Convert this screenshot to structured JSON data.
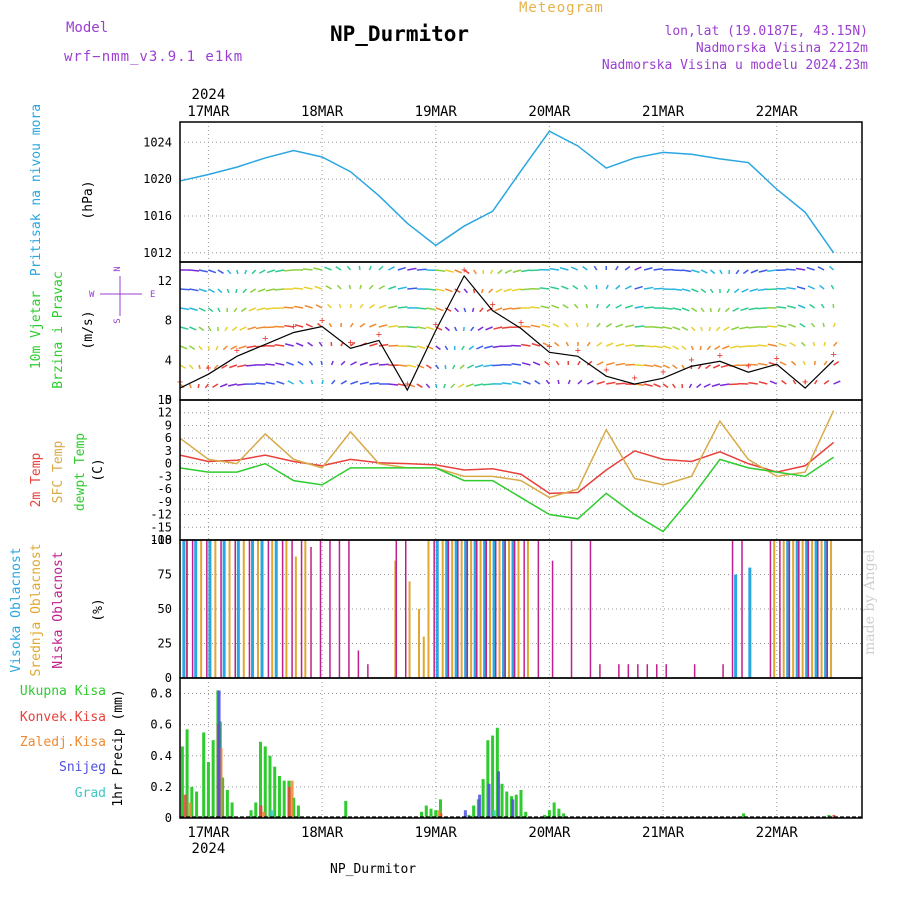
{
  "header": {
    "model_label": "Model",
    "model_name": "wrf−nmm_v3.9.1  e1km",
    "meteogram": "Meteogram",
    "title": "NP_Durmitor",
    "coords": "lon,lat (19.0187E, 43.15N)",
    "elev": "Nadmorska Visina 2212m",
    "elev_model": "Nadmorska Visina u modelu 2024.23m"
  },
  "footer": "NP_Durmitor",
  "watermark": "made by Angel",
  "colors": {
    "pressure": "#2aa6e0",
    "t2m": "#e8403a",
    "sfc": "#d8aa48",
    "dewpt": "#2ecc2e",
    "high_cloud": "#2aa6e0",
    "mid_cloud": "#e0a830",
    "low_cloud": "#c0208e",
    "total_precip": "#2ecc2e",
    "conv_precip": "#e8403a",
    "frz_precip": "#f08a30",
    "snow": "#4f4fe0",
    "graupel": "#40c8c8"
  },
  "chart_data": [
    {
      "type": "line",
      "panel": "pressure",
      "ylabel_1": "Pritisak na nivou mora",
      "ylabel_2": "(hPa)",
      "yticks": [
        1012,
        1016,
        1020,
        1024
      ],
      "ylim": [
        1011,
        1026.2
      ],
      "grid": true,
      "x_time_hours": [
        0,
        6,
        12,
        18,
        24,
        30,
        36,
        42,
        48,
        54,
        60,
        66,
        72,
        78,
        84,
        90,
        96,
        102,
        108,
        114,
        120,
        126,
        132,
        138
      ],
      "values": [
        1019.8,
        1020.5,
        1021.3,
        1022.3,
        1023.1,
        1022.4,
        1020.8,
        1018.2,
        1015.2,
        1012.8,
        1014.9,
        1016.5,
        1020.9,
        1025.2,
        1023.6,
        1021.2,
        1022.3,
        1022.9,
        1022.7,
        1022.2,
        1021.8,
        1018.9,
        1016.4,
        1012.0
      ]
    },
    {
      "type": "wind",
      "panel": "wind",
      "ylabel_1": "10m Vjetar",
      "ylabel_2": "Brzina i Pravac",
      "ylabel_3": "(m/s)",
      "compass": {
        "w": "W",
        "e": "E",
        "n": "N",
        "s": "S"
      },
      "yticks": [
        0,
        4,
        8,
        12
      ],
      "ylim": [
        0,
        13.9
      ],
      "x_time_hours": [
        0,
        6,
        12,
        18,
        24,
        30,
        36,
        42,
        48,
        54,
        60,
        66,
        72,
        78,
        84,
        90,
        96,
        102,
        108,
        114,
        120,
        126,
        132,
        138
      ],
      "values": [
        1.2,
        2.6,
        4.4,
        5.6,
        6.8,
        7.4,
        5.2,
        6.0,
        1.0,
        7.0,
        12.5,
        9.0,
        7.2,
        4.8,
        4.4,
        2.4,
        1.6,
        2.2,
        3.4,
        3.9,
        2.8,
        3.6,
        1.2,
        4.0
      ]
    },
    {
      "type": "line",
      "panel": "temperature",
      "ylabel_1": "2m Temp",
      "ylabel_2": "SFC Temp",
      "ylabel_3": "dewpt Temp",
      "ylabel_4": "(C)",
      "yticks": [
        15,
        12,
        9,
        6,
        3,
        0,
        -3,
        -6,
        -9,
        -12,
        -15,
        -18
      ],
      "ylim": [
        -18,
        15
      ],
      "grid": true,
      "x_time_hours": [
        0,
        6,
        12,
        18,
        24,
        30,
        36,
        42,
        48,
        54,
        60,
        66,
        72,
        78,
        84,
        90,
        96,
        102,
        108,
        114,
        120,
        126,
        132,
        138
      ],
      "series": [
        {
          "name": "2m Temp",
          "values": [
            2,
            0.5,
            0.8,
            2,
            0.5,
            -0.5,
            1,
            0.2,
            0,
            -0.3,
            -1.5,
            -1.2,
            -2.5,
            -7,
            -6.8,
            -1.5,
            3,
            1,
            0.5,
            2.8,
            0,
            -2,
            -0.5,
            5
          ]
        },
        {
          "name": "SFC Temp",
          "values": [
            6,
            1,
            0,
            7,
            1,
            -1,
            7.5,
            0,
            -1,
            -1,
            -3,
            -3,
            -4,
            -8,
            -6,
            8,
            -3.5,
            -5,
            -3,
            10,
            1,
            -3,
            -2,
            12.5
          ]
        },
        {
          "name": "dewpt Temp",
          "values": [
            -1,
            -2,
            -2,
            0,
            -4,
            -5,
            -1,
            -1,
            -1,
            -1,
            -4,
            -4,
            -8,
            -12,
            -13,
            -7,
            -12,
            -16,
            -8,
            1,
            -1,
            -2,
            -3,
            1.5
          ]
        }
      ]
    },
    {
      "type": "bar",
      "panel": "clouds",
      "ylabel_1": "Visoka Oblacnost",
      "ylabel_2": "Srednja Oblacnost",
      "ylabel_3": "Niska Oblacnost",
      "ylabel_4": "(%)",
      "yticks": [
        0,
        25,
        50,
        75,
        100
      ],
      "ylim": [
        0,
        100
      ],
      "grid": true,
      "series": [
        {
          "name": "Visoka Oblacnost",
          "points": [
            [
              0.5,
              100
            ],
            [
              3,
              100
            ],
            [
              6,
              100
            ],
            [
              9,
              100
            ],
            [
              12,
              100
            ],
            [
              15,
              100
            ],
            [
              17,
              100
            ],
            [
              20,
              100
            ],
            [
              54,
              100
            ],
            [
              56,
              100
            ],
            [
              58,
              100
            ],
            [
              60,
              100
            ],
            [
              62,
              100
            ],
            [
              64,
              100
            ],
            [
              66,
              100
            ],
            [
              68,
              100
            ],
            [
              70,
              100
            ],
            [
              117,
              75
            ],
            [
              120,
              80
            ],
            [
              128,
              100
            ],
            [
              130,
              100
            ],
            [
              132,
              100
            ],
            [
              134,
              100
            ],
            [
              136,
              100
            ]
          ]
        },
        {
          "name": "Srednja Oblacnost",
          "points": [
            [
              1,
              100
            ],
            [
              4,
              100
            ],
            [
              7,
              100
            ],
            [
              10,
              100
            ],
            [
              13,
              100
            ],
            [
              16,
              100
            ],
            [
              19,
              100
            ],
            [
              22,
              100
            ],
            [
              24,
              88
            ],
            [
              26,
              100
            ],
            [
              45,
              85
            ],
            [
              48,
              70
            ],
            [
              50,
              50
            ],
            [
              51,
              30
            ],
            [
              52,
              100
            ],
            [
              55,
              100
            ],
            [
              57,
              100
            ],
            [
              59,
              100
            ],
            [
              61,
              100
            ],
            [
              63,
              100
            ],
            [
              65,
              100
            ],
            [
              67,
              100
            ],
            [
              69,
              100
            ],
            [
              71,
              100
            ],
            [
              73,
              100
            ],
            [
              125,
              100
            ],
            [
              127,
              100
            ],
            [
              129,
              100
            ],
            [
              131,
              100
            ],
            [
              133,
              100
            ],
            [
              135,
              100
            ],
            [
              137,
              100
            ]
          ]
        },
        {
          "name": "Niska Oblacnost",
          "points": [
            [
              0.8,
              100
            ],
            [
              2,
              100
            ],
            [
              5,
              100
            ],
            [
              8,
              100
            ],
            [
              11,
              100
            ],
            [
              14,
              100
            ],
            [
              18,
              100
            ],
            [
              21,
              100
            ],
            [
              23,
              100
            ],
            [
              25,
              100
            ],
            [
              27,
              95
            ],
            [
              29,
              100
            ],
            [
              31,
              100
            ],
            [
              33,
              100
            ],
            [
              35,
              100
            ],
            [
              37,
              20
            ],
            [
              39,
              10
            ],
            [
              45,
              100
            ],
            [
              47,
              100
            ],
            [
              53,
              100
            ],
            [
              56,
              100
            ],
            [
              58,
              100
            ],
            [
              60,
              100
            ],
            [
              62,
              100
            ],
            [
              64,
              100
            ],
            [
              66,
              100
            ],
            [
              68,
              100
            ],
            [
              70,
              100
            ],
            [
              72,
              100
            ],
            [
              75,
              100
            ],
            [
              78,
              85
            ],
            [
              82,
              100
            ],
            [
              86,
              100
            ],
            [
              88,
              10
            ],
            [
              92,
              10
            ],
            [
              94,
              10
            ],
            [
              96,
              10
            ],
            [
              98,
              10
            ],
            [
              100,
              10
            ],
            [
              102,
              10
            ],
            [
              108,
              10
            ],
            [
              114,
              10
            ],
            [
              116,
              100
            ],
            [
              118,
              100
            ],
            [
              124,
              100
            ],
            [
              126,
              100
            ],
            [
              128,
              100
            ],
            [
              130,
              100
            ],
            [
              132,
              100
            ],
            [
              134,
              100
            ],
            [
              136,
              100
            ]
          ]
        }
      ]
    },
    {
      "type": "bar",
      "panel": "precipitation",
      "ylabel": "1hr Precip (mm)",
      "legend": [
        "Ukupna Kisa",
        "Konvek.Kisa",
        "Zaledj.Kisa",
        "Snijeg",
        "Grad"
      ],
      "yticks": [
        0,
        0.2,
        0.4,
        0.6,
        0.8
      ],
      "ylim": [
        0,
        0.9
      ],
      "grid": true,
      "series": [
        {
          "name": "Ukupna Kisa",
          "points": [
            [
              0.5,
              0.46
            ],
            [
              1.5,
              0.57
            ],
            [
              2.5,
              0.2
            ],
            [
              3.5,
              0.17
            ],
            [
              5,
              0.55
            ],
            [
              6,
              0.36
            ],
            [
              7,
              0.5
            ],
            [
              8,
              0.82
            ],
            [
              8.5,
              0.62
            ],
            [
              9,
              0.26
            ],
            [
              10,
              0.18
            ],
            [
              11,
              0.1
            ],
            [
              15,
              0.05
            ],
            [
              16,
              0.1
            ],
            [
              17,
              0.49
            ],
            [
              18,
              0.46
            ],
            [
              19,
              0.4
            ],
            [
              20,
              0.33
            ],
            [
              21,
              0.27
            ],
            [
              22,
              0.24
            ],
            [
              23,
              0.24
            ],
            [
              24,
              0.13
            ],
            [
              25,
              0.08
            ],
            [
              35,
              0.11
            ],
            [
              51,
              0.04
            ],
            [
              52,
              0.08
            ],
            [
              53,
              0.06
            ],
            [
              54,
              0.05
            ],
            [
              55,
              0.12
            ],
            [
              61,
              0.02
            ],
            [
              62,
              0.08
            ],
            [
              63,
              0.12
            ],
            [
              64,
              0.25
            ],
            [
              65,
              0.5
            ],
            [
              66,
              0.53
            ],
            [
              67,
              0.58
            ],
            [
              68,
              0.22
            ],
            [
              69,
              0.17
            ],
            [
              70,
              0.14
            ],
            [
              71,
              0.15
            ],
            [
              72,
              0.18
            ],
            [
              73,
              0.04
            ],
            [
              77,
              0.02
            ],
            [
              78,
              0.05
            ],
            [
              79,
              0.1
            ],
            [
              80,
              0.06
            ],
            [
              81,
              0.03
            ],
            [
              119,
              0.03
            ],
            [
              137,
              0.02
            ]
          ]
        },
        {
          "name": "Konvek.Kisa",
          "points": [
            [
              1,
              0.15
            ],
            [
              8,
              0.6
            ],
            [
              17,
              0.08
            ],
            [
              23,
              0.2
            ],
            [
              55,
              0.03
            ],
            [
              138,
              0.02
            ]
          ]
        },
        {
          "name": "Zaledj.Kisa",
          "points": [
            [
              2,
              0.1
            ],
            [
              8.5,
              0.45
            ],
            [
              17.5,
              0.04
            ],
            [
              23.5,
              0.24
            ],
            [
              54.5,
              0.05
            ]
          ]
        },
        {
          "name": "Snijeg",
          "points": [
            [
              8,
              0.82
            ],
            [
              60,
              0.05
            ],
            [
              63,
              0.15
            ],
            [
              65,
              0.22
            ],
            [
              67,
              0.3
            ],
            [
              70,
              0.12
            ]
          ]
        },
        {
          "name": "Grad",
          "points": [
            [
              19,
              0.05
            ],
            [
              66,
              0.05
            ]
          ]
        }
      ]
    }
  ],
  "time_axis": {
    "year": "2024",
    "days": [
      "17MAR",
      "18MAR",
      "19MAR",
      "20MAR",
      "21MAR",
      "22MAR"
    ],
    "day_hours": [
      6,
      30,
      54,
      78,
      102,
      126
    ],
    "xlim_hours": [
      0,
      144
    ]
  }
}
